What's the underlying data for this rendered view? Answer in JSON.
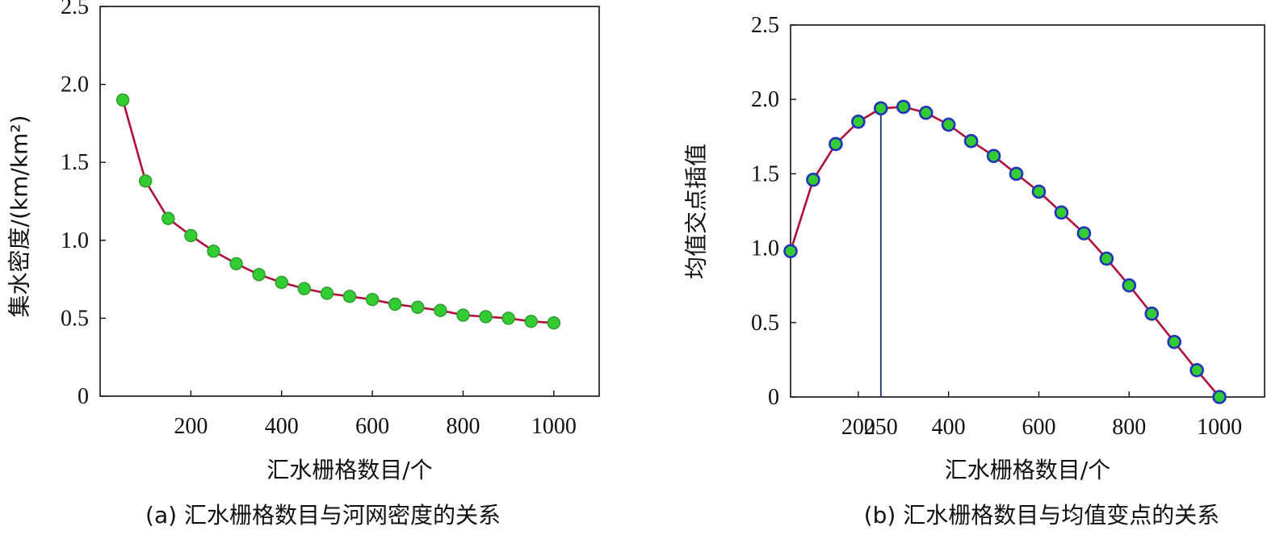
{
  "chart_data": [
    {
      "type": "line",
      "caption": "(a) 汇水栅格数目与河网密度的关系",
      "xlabel": "汇水栅格数目/个",
      "ylabel": "集水密度/(km/km²)",
      "xlim": [
        0,
        1100
      ],
      "ylim": [
        0,
        2.5
      ],
      "xticks": [
        200,
        400,
        600,
        800,
        1000
      ],
      "xtick_labels": [
        "200",
        "400",
        "600",
        "800",
        "1000"
      ],
      "yticks": [
        0,
        0.5,
        1.0,
        1.5,
        2.0,
        2.5
      ],
      "ytick_labels": [
        "0",
        "0.5",
        "1.0",
        "1.5",
        "2.0",
        "2.5"
      ],
      "grid": false,
      "line_color": "#b0103a",
      "marker_fill": "#33cc33",
      "marker_edge": "#2a9a2a",
      "series": [
        {
          "x": [
            50,
            100,
            150,
            200,
            250,
            300,
            350,
            400,
            450,
            500,
            550,
            600,
            650,
            700,
            750,
            800,
            850,
            900,
            950,
            1000
          ],
          "values": [
            1.9,
            1.38,
            1.14,
            1.03,
            0.93,
            0.85,
            0.78,
            0.73,
            0.69,
            0.66,
            0.64,
            0.62,
            0.59,
            0.57,
            0.55,
            0.52,
            0.51,
            0.5,
            0.48,
            0.47
          ]
        }
      ]
    },
    {
      "type": "line",
      "caption": "(b) 汇水栅格数目与均值变点的关系",
      "xlabel": "汇水栅格数目/个",
      "ylabel": "均值交点插值",
      "xlim": [
        50,
        1100
      ],
      "ylim": [
        0,
        2.5
      ],
      "xticks": [
        200,
        250,
        400,
        600,
        800,
        1000
      ],
      "xtick_labels": [
        "200",
        "250",
        "400",
        "600",
        "800",
        "1000"
      ],
      "yticks": [
        0,
        0.5,
        1.0,
        1.5,
        2.0,
        2.5
      ],
      "ytick_labels": [
        "0",
        "0.5",
        "1.0",
        "1.5",
        "2.0",
        "2.5"
      ],
      "grid": false,
      "vline_x": 250,
      "line_color": "#b0103a",
      "marker_fill": "#33cc33",
      "marker_edge": "#2233bb",
      "series": [
        {
          "x": [
            50,
            100,
            150,
            200,
            250,
            300,
            350,
            400,
            450,
            500,
            550,
            600,
            650,
            700,
            750,
            800,
            850,
            900,
            950,
            1000
          ],
          "values": [
            0.98,
            1.46,
            1.7,
            1.85,
            1.94,
            1.95,
            1.91,
            1.83,
            1.72,
            1.62,
            1.5,
            1.38,
            1.24,
            1.1,
            0.93,
            0.75,
            0.56,
            0.37,
            0.18,
            0.0
          ]
        }
      ]
    }
  ]
}
